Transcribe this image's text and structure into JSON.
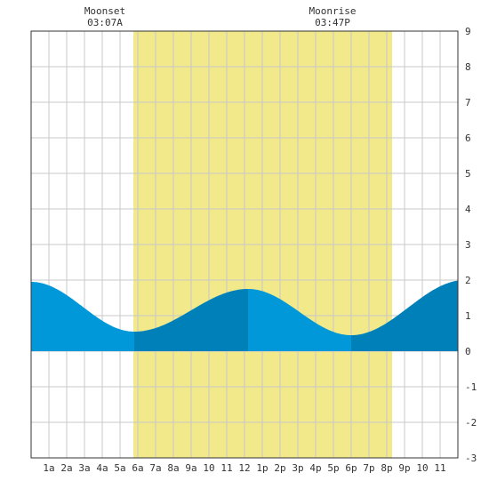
{
  "moon": {
    "moonset_label": "Moonset",
    "moonset_time": "03:07A",
    "moonrise_label": "Moonrise",
    "moonrise_time": "03:47P"
  },
  "chart_data": {
    "type": "area",
    "x_ticks": [
      "1a",
      "2a",
      "3a",
      "4a",
      "5a",
      "6a",
      "7a",
      "8a",
      "9a",
      "10",
      "11",
      "12",
      "1p",
      "2p",
      "3p",
      "4p",
      "5p",
      "6p",
      "7p",
      "8p",
      "9p",
      "10",
      "11"
    ],
    "y_ticks": [
      9,
      8,
      7,
      6,
      5,
      4,
      3,
      2,
      1,
      0,
      -1,
      -2,
      -3
    ],
    "xlim": [
      0,
      24
    ],
    "ylim": [
      -3,
      9
    ],
    "daylight_hours": [
      5.75,
      20.3
    ],
    "grid": true,
    "tide_extremes": [
      {
        "hour": 0.0,
        "height": 1.95
      },
      {
        "hour": 5.8,
        "height": 0.55
      },
      {
        "hour": 12.2,
        "height": 1.75
      },
      {
        "hour": 18.0,
        "height": 0.45
      },
      {
        "hour": 24.4,
        "height": 2.0
      }
    ],
    "colors": {
      "daylight": "#f2e98a",
      "tide_light": "#0098d8",
      "tide_dark": "#0080b8",
      "grid": "#c8c8c8",
      "background": "#ffffff"
    }
  }
}
